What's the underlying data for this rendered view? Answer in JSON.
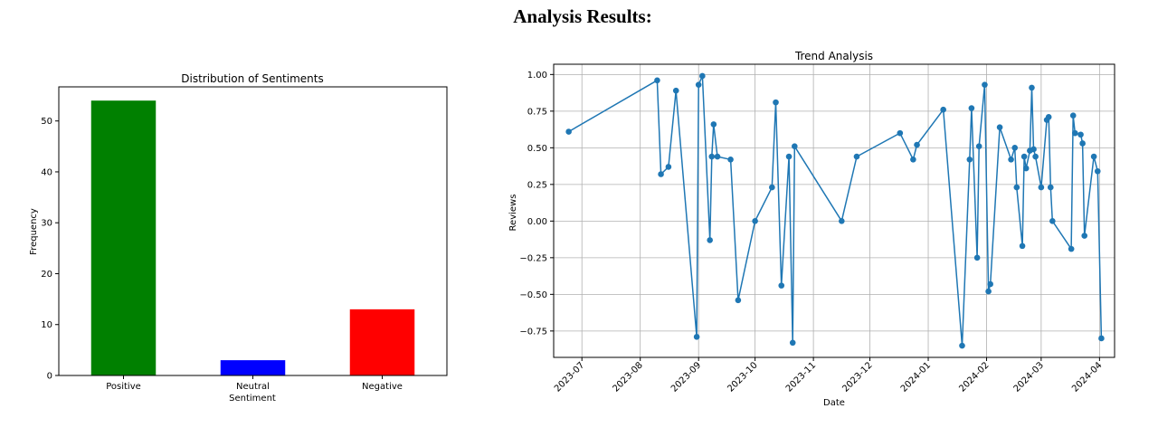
{
  "page": {
    "title": "Analysis Results:"
  },
  "chart_data": [
    {
      "type": "bar",
      "title": "Distribution of Sentiments",
      "xlabel": "Sentiment",
      "ylabel": "Frequency",
      "categories": [
        "Positive",
        "Neutral",
        "Negative"
      ],
      "values": [
        54,
        3,
        13
      ],
      "colors": [
        "#008000",
        "#0000ff",
        "#ff0000"
      ],
      "ylim": [
        0,
        56.7
      ],
      "yticks": [
        "0",
        "10",
        "20",
        "30",
        "40",
        "50"
      ],
      "grid": false
    },
    {
      "type": "line",
      "title": "Trend Analysis",
      "xlabel": "Date",
      "ylabel": "Reviews",
      "color": "#1f77b4",
      "marker": "circle",
      "grid": true,
      "ylim": [
        -0.93,
        1.07
      ],
      "xlim": [
        "2023-06-16",
        "2024-04-09"
      ],
      "yticks": [
        "1.00",
        "0.75",
        "0.50",
        "0.25",
        "0.00",
        "−0.25",
        "−0.50",
        "−0.75"
      ],
      "xticks": [
        "2023-07",
        "2023-08",
        "2023-09",
        "2023-10",
        "2023-11",
        "2023-12",
        "2024-01",
        "2024-02",
        "2024-03",
        "2024-04"
      ],
      "points": [
        {
          "x": "2023-06-24",
          "y": 0.61
        },
        {
          "x": "2023-08-10",
          "y": 0.96
        },
        {
          "x": "2023-08-12",
          "y": 0.32
        },
        {
          "x": "2023-08-16",
          "y": 0.37
        },
        {
          "x": "2023-08-20",
          "y": 0.89
        },
        {
          "x": "2023-08-31",
          "y": -0.79
        },
        {
          "x": "2023-09-01",
          "y": 0.93
        },
        {
          "x": "2023-09-03",
          "y": 0.99
        },
        {
          "x": "2023-09-07",
          "y": -0.13
        },
        {
          "x": "2023-09-08",
          "y": 0.44
        },
        {
          "x": "2023-09-09",
          "y": 0.66
        },
        {
          "x": "2023-09-11",
          "y": 0.44
        },
        {
          "x": "2023-09-18",
          "y": 0.42
        },
        {
          "x": "2023-09-22",
          "y": -0.54
        },
        {
          "x": "2023-10-01",
          "y": 0.0
        },
        {
          "x": "2023-10-10",
          "y": 0.23
        },
        {
          "x": "2023-10-12",
          "y": 0.81
        },
        {
          "x": "2023-10-15",
          "y": -0.44
        },
        {
          "x": "2023-10-19",
          "y": 0.44
        },
        {
          "x": "2023-10-21",
          "y": -0.83
        },
        {
          "x": "2023-10-22",
          "y": 0.51
        },
        {
          "x": "2023-11-16",
          "y": 0.0
        },
        {
          "x": "2023-11-24",
          "y": 0.44
        },
        {
          "x": "2023-12-17",
          "y": 0.6
        },
        {
          "x": "2023-12-24",
          "y": 0.42
        },
        {
          "x": "2023-12-26",
          "y": 0.52
        },
        {
          "x": "2024-01-09",
          "y": 0.76
        },
        {
          "x": "2024-01-19",
          "y": -0.85
        },
        {
          "x": "2024-01-23",
          "y": 0.42
        },
        {
          "x": "2024-01-24",
          "y": 0.77
        },
        {
          "x": "2024-01-27",
          "y": -0.25
        },
        {
          "x": "2024-01-28",
          "y": 0.51
        },
        {
          "x": "2024-01-31",
          "y": 0.93
        },
        {
          "x": "2024-02-02",
          "y": -0.48
        },
        {
          "x": "2024-02-03",
          "y": -0.43
        },
        {
          "x": "2024-02-08",
          "y": 0.64
        },
        {
          "x": "2024-02-14",
          "y": 0.42
        },
        {
          "x": "2024-02-16",
          "y": 0.5
        },
        {
          "x": "2024-02-17",
          "y": 0.23
        },
        {
          "x": "2024-02-20",
          "y": -0.17
        },
        {
          "x": "2024-02-21",
          "y": 0.44
        },
        {
          "x": "2024-02-22",
          "y": 0.36
        },
        {
          "x": "2024-02-24",
          "y": 0.48
        },
        {
          "x": "2024-02-25",
          "y": 0.91
        },
        {
          "x": "2024-02-26",
          "y": 0.49
        },
        {
          "x": "2024-02-27",
          "y": 0.44
        },
        {
          "x": "2024-03-01",
          "y": 0.23
        },
        {
          "x": "2024-03-04",
          "y": 0.69
        },
        {
          "x": "2024-03-05",
          "y": 0.71
        },
        {
          "x": "2024-03-06",
          "y": 0.23
        },
        {
          "x": "2024-03-07",
          "y": 0.0
        },
        {
          "x": "2024-03-17",
          "y": -0.19
        },
        {
          "x": "2024-03-18",
          "y": 0.72
        },
        {
          "x": "2024-03-19",
          "y": 0.6
        },
        {
          "x": "2024-03-22",
          "y": 0.59
        },
        {
          "x": "2024-03-23",
          "y": 0.53
        },
        {
          "x": "2024-03-24",
          "y": -0.1
        },
        {
          "x": "2024-03-29",
          "y": 0.44
        },
        {
          "x": "2024-03-31",
          "y": 0.34
        },
        {
          "x": "2024-04-02",
          "y": -0.8
        }
      ]
    }
  ]
}
